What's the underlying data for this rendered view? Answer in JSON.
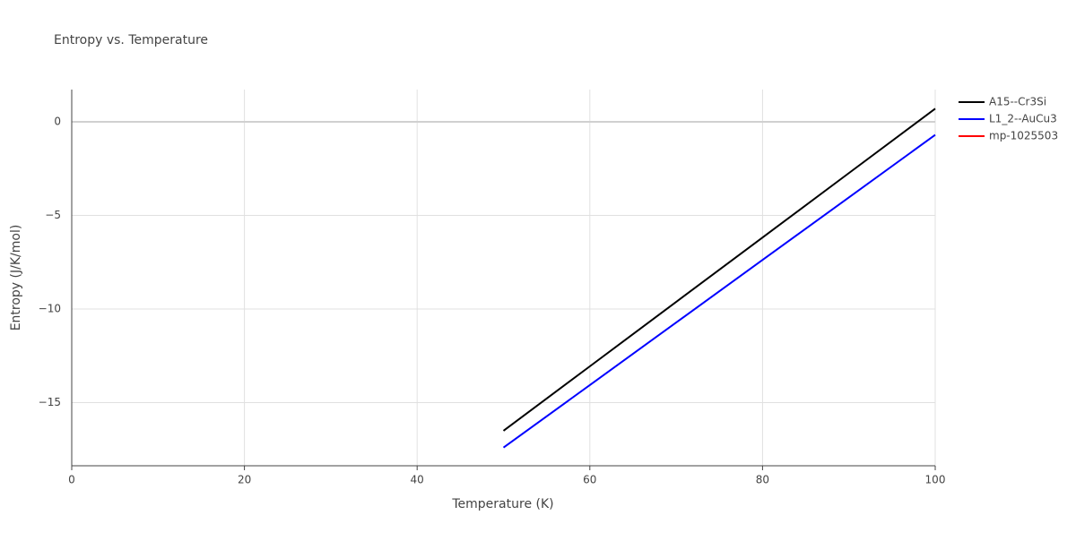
{
  "chart_data": {
    "type": "line",
    "title": "Entropy vs. Temperature",
    "x_label": "Temperature (K)",
    "y_label": "Entropy (J/K/mol)",
    "x": [
      50,
      60,
      70,
      80,
      90,
      100
    ],
    "series": [
      {
        "name": "A15--Cr3Si",
        "color": "#000000",
        "values": [
          -16.5,
          -13.06,
          -9.62,
          -6.18,
          -2.74,
          0.7
        ]
      },
      {
        "name": "L1_2--AuCu3",
        "color": "#0000ff",
        "values": [
          -17.4,
          -14.06,
          -10.72,
          -7.38,
          -4.04,
          -0.7
        ]
      },
      {
        "name": "mp-1025503",
        "color": "#ff0000",
        "values": [
          null,
          null,
          null,
          null,
          null,
          null
        ]
      }
    ],
    "xlim": [
      0,
      100
    ],
    "xticks": [
      0,
      20,
      40,
      60,
      80,
      100
    ],
    "ylim": [
      -18.37,
      1.72
    ],
    "yticks": [
      {
        "value": -15,
        "label": "−15"
      },
      {
        "value": -10,
        "label": "−10"
      },
      {
        "value": -5,
        "label": "−5"
      },
      0
    ],
    "grid": true,
    "legend": "right"
  }
}
